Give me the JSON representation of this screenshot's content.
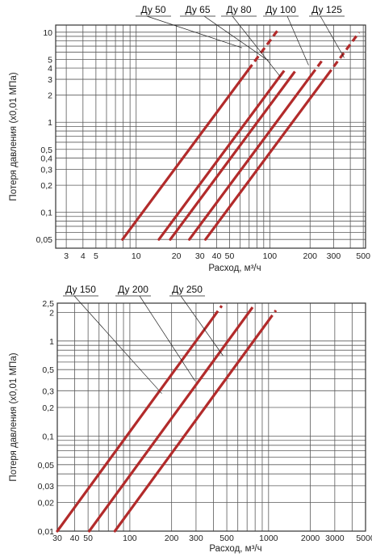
{
  "chart_data": [
    {
      "type": "line",
      "xscale": "log",
      "yscale": "log",
      "xlabel": "Расход, м³/ч",
      "ylabel": "Потеря давления (х0,01 МПа)",
      "xlim": [
        2.5,
        520
      ],
      "ylim": [
        0.04,
        12
      ],
      "x_ticks": [
        "3",
        "4",
        "5",
        "10",
        "20",
        "30",
        "40",
        "50",
        "100",
        "200",
        "300",
        "500"
      ],
      "y_ticks": [
        "0,05",
        "0,1",
        "0,2",
        "0,3",
        "0,4",
        "0,5",
        "1",
        "2",
        "3",
        "4",
        "5",
        "10"
      ],
      "grid": true,
      "series": [
        {
          "name": "Ду 50",
          "color": "#b22b2b",
          "x_start": 7.9,
          "x_solid_end": 69,
          "x_end": 117,
          "label_x": 62,
          "label_y": 6.7
        },
        {
          "name": "Ду 65",
          "color": "#b22b2b",
          "x_start": 14.8,
          "x_solid_end": 121,
          "x_end": 128,
          "label_x": 98,
          "label_y": 4.8
        },
        {
          "name": "Ду 80",
          "color": "#b22b2b",
          "x_start": 18,
          "x_solid_end": 146,
          "x_end": 154,
          "label_x": 120,
          "label_y": 3.2
        },
        {
          "name": "Ду 100",
          "color": "#b22b2b",
          "x_start": 25,
          "x_solid_end": 205,
          "x_end": 250,
          "label_x": 195,
          "label_y": 4.3
        },
        {
          "name": "Ду 125",
          "color": "#b22b2b",
          "x_start": 33,
          "x_solid_end": 270,
          "x_end": 465,
          "label_x": 360,
          "label_y": 5.2
        }
      ]
    },
    {
      "type": "line",
      "xscale": "log",
      "yscale": "log",
      "xlabel": "Расход, м³/ч",
      "ylabel": "Потеря давления (х0,01 МПа)",
      "xlim": [
        30,
        5000
      ],
      "ylim": [
        0.01,
        2.5
      ],
      "x_ticks": [
        "30",
        "40",
        "50",
        "100",
        "200",
        "300",
        "500",
        "1000",
        "2000",
        "3000",
        "5000"
      ],
      "y_ticks": [
        "0,01",
        "0,02",
        "0,03",
        "0,05",
        "0,1",
        "0,2",
        "0,3",
        "0,5",
        "1",
        "2",
        "2,5"
      ],
      "grid": true,
      "series": [
        {
          "name": "Ду 150",
          "color": "#b22b2b",
          "x_start": 30,
          "x_solid_end": 405,
          "x_end": 460,
          "label_x": 170,
          "label_y": 0.28
        },
        {
          "name": "Ду 200",
          "color": "#b22b2b",
          "x_start": 51,
          "x_solid_end": 720,
          "x_end": 790,
          "label_x": 295,
          "label_y": 0.38
        },
        {
          "name": "Ду 250",
          "color": "#b22b2b",
          "x_start": 78,
          "x_solid_end": 1000,
          "x_end": 1130,
          "label_x": 470,
          "label_y": 0.7
        }
      ]
    }
  ]
}
